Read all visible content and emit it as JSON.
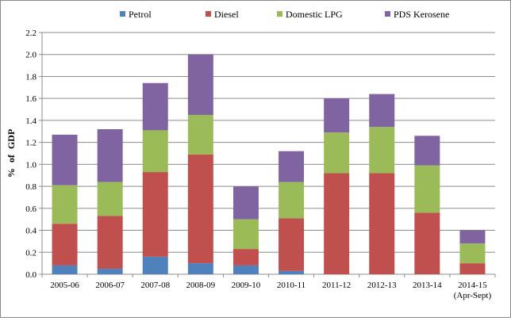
{
  "chart_data": {
    "type": "bar",
    "stacked": true,
    "categories": [
      "2005-06",
      "2006-07",
      "2007-08",
      "2008-09",
      "2009-10",
      "2010-11",
      "2011-12",
      "2012-13",
      "2013-14",
      "2014-15\n(Apr-Sept)"
    ],
    "series": [
      {
        "name": "Petrol",
        "color": "#4f81bd",
        "values": [
          0.08,
          0.05,
          0.16,
          0.1,
          0.08,
          0.03,
          0.0,
          0.0,
          0.0,
          0.0
        ]
      },
      {
        "name": "Diesel",
        "color": "#c0504d",
        "values": [
          0.38,
          0.48,
          0.77,
          0.99,
          0.15,
          0.48,
          0.92,
          0.92,
          0.56,
          0.1
        ]
      },
      {
        "name": "Domestic LPG",
        "color": "#9bbb59",
        "values": [
          0.35,
          0.31,
          0.38,
          0.36,
          0.27,
          0.33,
          0.37,
          0.42,
          0.43,
          0.18
        ]
      },
      {
        "name": "PDS Kerosene",
        "color": "#8064a2",
        "values": [
          0.46,
          0.48,
          0.43,
          0.55,
          0.3,
          0.28,
          0.31,
          0.3,
          0.27,
          0.12
        ]
      }
    ],
    "ylabel": "% of GDP",
    "ylim": [
      0,
      2.2
    ],
    "yticks": [
      "0.0",
      "0.2",
      "0.4",
      "0.6",
      "0.8",
      "1.0",
      "1.2",
      "1.4",
      "1.6",
      "1.8",
      "2.0",
      "2.2"
    ],
    "grid": true,
    "legend_position": "top"
  }
}
